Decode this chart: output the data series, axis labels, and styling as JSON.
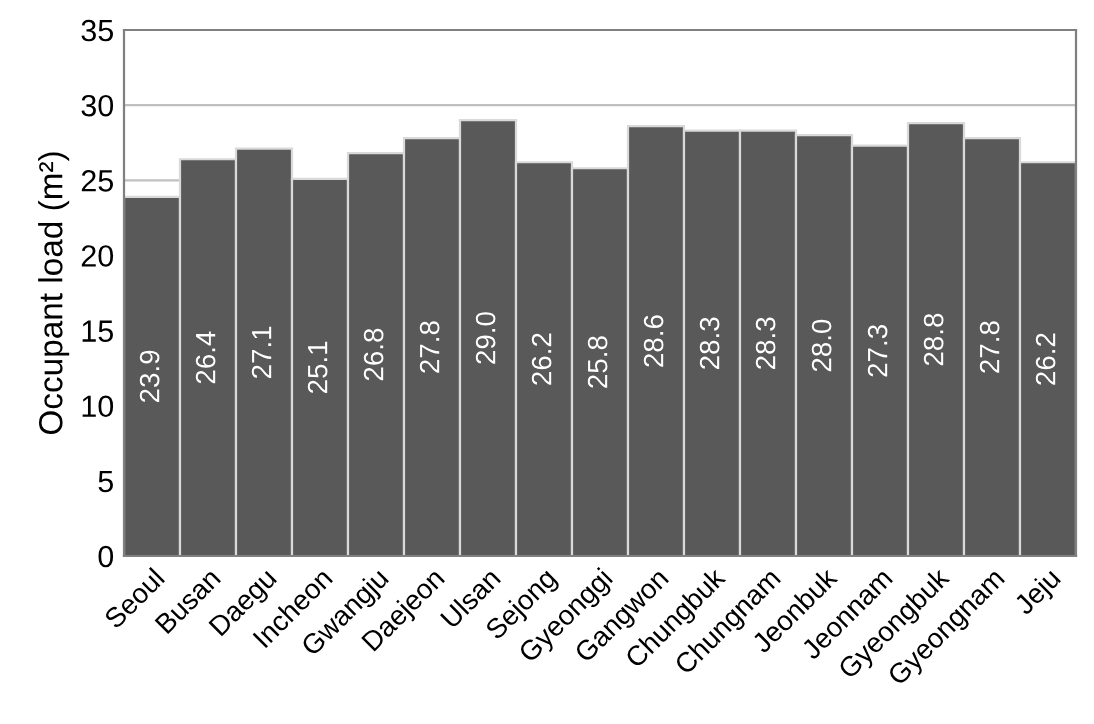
{
  "chart_data": {
    "type": "bar",
    "ylabel": "Occupant load (m²)",
    "categories": [
      "Seoul",
      "Busan",
      "Daegu",
      "Incheon",
      "Gwangju",
      "Daejeon",
      "Ulsan",
      "Sejong",
      "Gyeonggi",
      "Gangwon",
      "Chungbuk",
      "Chungnam",
      "Jeonbuk",
      "Jeonnam",
      "Gyeongbuk",
      "Gyeongnam",
      "Jeju"
    ],
    "values": [
      23.9,
      26.4,
      27.1,
      25.1,
      26.8,
      27.8,
      29.0,
      26.2,
      25.8,
      28.6,
      28.3,
      28.3,
      28.0,
      27.3,
      28.8,
      27.8,
      26.2
    ],
    "value_labels": [
      "23.9",
      "26.4",
      "27.1",
      "25.1",
      "26.8",
      "27.8",
      "29.0",
      "26.2",
      "25.8",
      "28.6",
      "28.3",
      "28.3",
      "28.0",
      "27.3",
      "28.8",
      "27.8",
      "26.2"
    ],
    "color": "#595959",
    "ylim": [
      0,
      35
    ],
    "yticks": [
      0,
      5,
      10,
      15,
      20,
      25,
      30,
      35
    ],
    "grid": "y"
  }
}
